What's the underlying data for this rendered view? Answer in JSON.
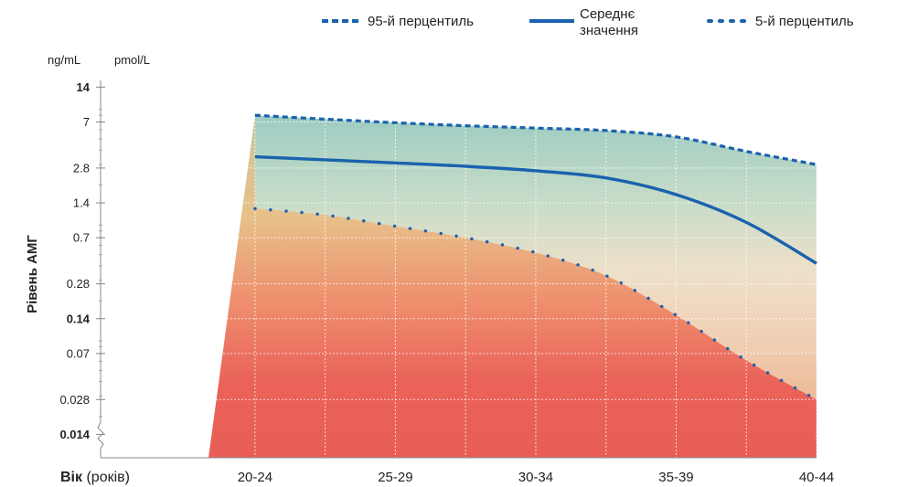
{
  "chart_data": {
    "type": "area",
    "legend": {
      "placement": "top-right",
      "items": [
        {
          "key": "p95",
          "label_lines": [
            "95-й перцентиль"
          ],
          "style": "dashed"
        },
        {
          "key": "mean",
          "label_lines": [
            "Середнє",
            "значення"
          ],
          "style": "solid"
        },
        {
          "key": "p5",
          "label_lines": [
            "5-й перцентиль"
          ],
          "style": "dotted"
        }
      ]
    },
    "axis_units": {
      "left": "ng/mL",
      "right": "pmol/L"
    },
    "ylabel": "Рівень АМГ",
    "xlabel_bold": "Вік",
    "xlabel_rest": " (років)",
    "y_scale": "log",
    "ylim": [
      0.0088,
      16
    ],
    "y_ticks": [
      {
        "value": 14,
        "label": "14",
        "bold": true
      },
      {
        "value": 7,
        "label": "7",
        "bold": false
      },
      {
        "value": 2.8,
        "label": "2.8",
        "bold": false
      },
      {
        "value": 1.4,
        "label": "1.4",
        "bold": false
      },
      {
        "value": 0.7,
        "label": "0.7",
        "bold": false
      },
      {
        "value": 0.28,
        "label": "0.28",
        "bold": false
      },
      {
        "value": 0.14,
        "label": "0.14",
        "bold": true
      },
      {
        "value": 0.07,
        "label": "0.07",
        "bold": false
      },
      {
        "value": 0.028,
        "label": "0.028",
        "bold": false
      },
      {
        "value": 0.014,
        "label": "0.014",
        "bold": true
      }
    ],
    "gridlines_y": [
      7,
      2.8,
      1.4,
      0.7,
      0.28,
      0.14,
      0.07,
      0.028
    ],
    "categories": [
      "20-24",
      "25-29",
      "30-34",
      "35-39",
      "40-44"
    ],
    "xlim": [
      -1.1,
      4
    ],
    "gridlines_x": [
      0,
      0.5,
      1,
      1.5,
      2,
      2.5,
      3,
      3.5,
      4
    ],
    "series": [
      {
        "key": "p95",
        "color": "#1a62ad",
        "x": [
          0,
          0.5,
          1,
          1.5,
          2,
          2.5,
          3,
          3.5,
          4
        ],
        "y": [
          8.0,
          7.4,
          6.9,
          6.5,
          6.2,
          5.9,
          5.2,
          3.9,
          3.0
        ]
      },
      {
        "key": "mean",
        "color": "#1a62ad",
        "x": [
          0,
          0.5,
          1,
          1.5,
          2,
          2.5,
          3,
          3.5,
          4
        ],
        "y": [
          3.5,
          3.3,
          3.1,
          2.9,
          2.65,
          2.3,
          1.65,
          0.95,
          0.42
        ]
      },
      {
        "key": "p5",
        "color": "#1a62ad",
        "x": [
          0,
          0.5,
          1,
          1.5,
          2,
          2.5,
          3,
          3.5,
          4
        ],
        "y": [
          1.25,
          1.1,
          0.88,
          0.7,
          0.52,
          0.33,
          0.15,
          0.061,
          0.028
        ]
      }
    ]
  }
}
